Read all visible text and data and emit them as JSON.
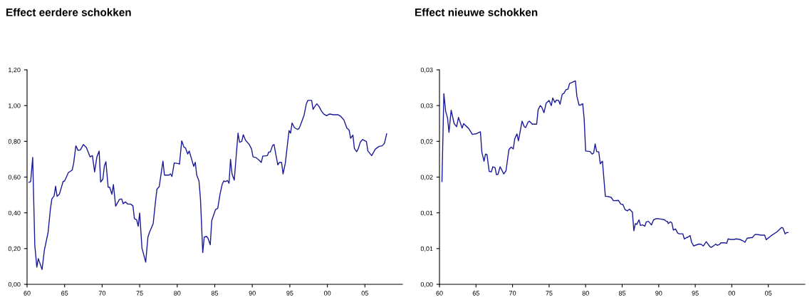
{
  "chart_data": [
    {
      "type": "line",
      "title": "Effect eerdere schokken",
      "xlim": [
        1960,
        2010
      ],
      "ylim": [
        0,
        1.2
      ],
      "xticks": [
        {
          "value": 1960,
          "label": "60"
        },
        {
          "value": 1965,
          "label": "65"
        },
        {
          "value": 1970,
          "label": "70"
        },
        {
          "value": 1975,
          "label": "75"
        },
        {
          "value": 1980,
          "label": "80"
        },
        {
          "value": 1985,
          "label": "85"
        },
        {
          "value": 1990,
          "label": "90"
        },
        {
          "value": 1995,
          "label": "95"
        },
        {
          "value": 2000,
          "label": "00"
        },
        {
          "value": 2005,
          "label": "05"
        }
      ],
      "yticks": [
        {
          "value": 0,
          "label": "0,00"
        },
        {
          "value": 0.2,
          "label": "0,20"
        },
        {
          "value": 0.4,
          "label": "0,40"
        },
        {
          "value": 0.6,
          "label": "0,60"
        },
        {
          "value": 0.8,
          "label": "0,80"
        },
        {
          "value": 1.0,
          "label": "1,00"
        },
        {
          "value": 1.2,
          "label": "1,20"
        }
      ],
      "grid": false,
      "legend": false,
      "series": [
        {
          "color": "#1a1a99",
          "x": [
            1960.24,
            1960.48,
            1960.75,
            1961.03,
            1961.3,
            1961.5,
            1962.0,
            1962.3,
            1962.8,
            1963.1,
            1963.3,
            1963.6,
            1963.8,
            1964.0,
            1964.3,
            1964.8,
            1965.0,
            1965.5,
            1966.0,
            1966.2,
            1966.5,
            1966.8,
            1967.1,
            1967.5,
            1967.9,
            1968.4,
            1968.7,
            1969.0,
            1969.3,
            1969.6,
            1969.8,
            1970.1,
            1970.3,
            1970.5,
            1970.8,
            1971.0,
            1971.3,
            1971.5,
            1971.8,
            1972.3,
            1972.6,
            1972.8,
            1973.1,
            1973.4,
            1973.8,
            1974.1,
            1974.3,
            1974.6,
            1974.8,
            1975.0,
            1975.3,
            1975.8,
            1976.1,
            1976.3,
            1976.8,
            1977.1,
            1977.3,
            1977.6,
            1978.1,
            1978.3,
            1978.9,
            1979.1,
            1979.3,
            1979.6,
            1980.2,
            1980.3,
            1980.6,
            1980.9,
            1981.1,
            1981.4,
            1981.6,
            1982.2,
            1982.4,
            1982.6,
            1982.9,
            1983.1,
            1983.4,
            1983.6,
            1983.9,
            1984.1,
            1984.4,
            1984.6,
            1985.1,
            1985.4,
            1985.7,
            1986.0,
            1986.2,
            1986.4,
            1986.7,
            1986.9,
            1987.1,
            1987.3,
            1987.6,
            1988.1,
            1988.3,
            1988.6,
            1988.8,
            1989.1,
            1989.6,
            1989.9,
            1990.1,
            1990.5,
            1990.9,
            1991.2,
            1991.4,
            1991.7,
            1992.0,
            1992.2,
            1992.4,
            1992.7,
            1992.9,
            1993.1,
            1993.4,
            1993.6,
            1993.9,
            1994.1,
            1994.4,
            1994.7,
            1994.9,
            1995.1,
            1995.3,
            1995.6,
            1996.0,
            1996.2,
            1996.4,
            1996.9,
            1997.2,
            1997.4,
            1997.9,
            1998.1,
            1998.4,
            1998.6,
            1998.9,
            1999.2,
            1999.5,
            1999.9,
            2000.3,
            2000.8,
            2001.4,
            2001.8,
            2002.2,
            2002.6,
            2002.9,
            2003.1,
            2003.4,
            2003.6,
            2003.9,
            2004.1,
            2004.4,
            2004.7,
            2005.2,
            2005.4,
            2005.9,
            2006.4,
            2006.9,
            2007.3,
            2007.6,
            2007.9
          ],
          "values": [
            0.571,
            0.575,
            0.71,
            0.218,
            0.096,
            0.144,
            0.083,
            0.19,
            0.29,
            0.418,
            0.478,
            0.494,
            0.549,
            0.492,
            0.504,
            0.575,
            0.578,
            0.625,
            0.639,
            0.675,
            0.775,
            0.749,
            0.752,
            0.782,
            0.765,
            0.713,
            0.72,
            0.629,
            0.713,
            0.746,
            0.572,
            0.589,
            0.663,
            0.686,
            0.543,
            0.543,
            0.504,
            0.558,
            0.437,
            0.475,
            0.478,
            0.451,
            0.461,
            0.449,
            0.449,
            0.439,
            0.367,
            0.361,
            0.325,
            0.399,
            0.204,
            0.124,
            0.264,
            0.29,
            0.34,
            0.461,
            0.532,
            0.546,
            0.689,
            0.611,
            0.611,
            0.618,
            0.603,
            0.679,
            0.675,
            0.672,
            0.803,
            0.767,
            0.763,
            0.729,
            0.746,
            0.66,
            0.683,
            0.611,
            0.578,
            0.475,
            0.178,
            0.264,
            0.268,
            0.258,
            0.221,
            0.357,
            0.418,
            0.425,
            0.504,
            0.561,
            0.578,
            0.575,
            0.581,
            0.565,
            0.699,
            0.618,
            0.583,
            0.846,
            0.795,
            0.8,
            0.837,
            0.806,
            0.782,
            0.757,
            0.713,
            0.709,
            0.695,
            0.682,
            0.718,
            0.718,
            0.72,
            0.74,
            0.74,
            0.777,
            0.782,
            0.735,
            0.668,
            0.682,
            0.682,
            0.618,
            0.678,
            0.789,
            0.86,
            0.846,
            0.903,
            0.877,
            0.867,
            0.87,
            0.889,
            0.946,
            1.01,
            1.029,
            1.029,
            0.979,
            0.999,
            1.01,
            0.994,
            0.97,
            0.953,
            0.943,
            0.953,
            0.949,
            0.949,
            0.939,
            0.92,
            0.874,
            0.863,
            0.817,
            0.835,
            0.76,
            0.742,
            0.757,
            0.796,
            0.81,
            0.799,
            0.746,
            0.72,
            0.757,
            0.772,
            0.775,
            0.789,
            0.842
          ]
        }
      ]
    },
    {
      "type": "line",
      "title": "Effect nieuwe schokken",
      "xlim": [
        1960,
        2010
      ],
      "ylim": [
        0,
        0.03
      ],
      "xticks": [
        {
          "value": 1960,
          "label": "60"
        },
        {
          "value": 1965,
          "label": "65"
        },
        {
          "value": 1970,
          "label": "70"
        },
        {
          "value": 1975,
          "label": "75"
        },
        {
          "value": 1980,
          "label": "80"
        },
        {
          "value": 1985,
          "label": "85"
        },
        {
          "value": 1990,
          "label": "90"
        },
        {
          "value": 1995,
          "label": "95"
        },
        {
          "value": 2000,
          "label": "00"
        },
        {
          "value": 2005,
          "label": "05"
        }
      ],
      "yticks": [
        {
          "value": 0,
          "label": "0,00"
        },
        {
          "value": 0.005,
          "label": "0,01"
        },
        {
          "value": 0.01,
          "label": "0,01"
        },
        {
          "value": 0.015,
          "label": "0,02"
        },
        {
          "value": 0.02,
          "label": "0,02"
        },
        {
          "value": 0.025,
          "label": "0,03"
        },
        {
          "value": 0.03,
          "label": "0,03"
        }
      ],
      "grid": false,
      "legend": false,
      "series": [
        {
          "color": "#1a1a99",
          "x": [
            1960.34,
            1960.6,
            1960.85,
            1961.1,
            1961.3,
            1961.6,
            1962.0,
            1962.35,
            1962.6,
            1963.1,
            1963.3,
            1964.0,
            1964.5,
            1965.1,
            1965.6,
            1965.8,
            1966.1,
            1966.3,
            1966.5,
            1966.8,
            1967.1,
            1967.3,
            1967.6,
            1967.8,
            1968.0,
            1968.3,
            1968.8,
            1969.1,
            1969.5,
            1969.8,
            1970.1,
            1970.3,
            1970.6,
            1970.8,
            1971.1,
            1971.3,
            1971.6,
            1971.8,
            1972.1,
            1972.3,
            1972.7,
            1973.3,
            1973.5,
            1973.8,
            1974.0,
            1974.3,
            1974.6,
            1975.0,
            1975.3,
            1975.5,
            1975.8,
            1976.0,
            1976.3,
            1976.5,
            1976.8,
            1977.0,
            1977.3,
            1977.6,
            1977.8,
            1978.1,
            1978.6,
            1978.8,
            1979.1,
            1979.3,
            1979.6,
            1979.8,
            1980.0,
            1980.6,
            1980.9,
            1981.1,
            1981.3,
            1981.5,
            1981.8,
            1982.0,
            1982.3,
            1982.7,
            1983.0,
            1983.5,
            1983.8,
            1984.5,
            1984.8,
            1985.1,
            1985.4,
            1985.7,
            1986.0,
            1986.4,
            1986.6,
            1986.8,
            1987.0,
            1987.3,
            1987.5,
            1987.8,
            1988.1,
            1988.3,
            1988.6,
            1989.0,
            1989.3,
            1989.7,
            1990.3,
            1990.8,
            1991.0,
            1991.2,
            1991.3,
            1991.6,
            1991.8,
            1992.0,
            1992.3,
            1992.6,
            1992.8,
            1993.3,
            1993.5,
            1993.8,
            1994.0,
            1994.3,
            1994.5,
            1994.8,
            1995.0,
            1995.5,
            1995.8,
            1996.1,
            1996.5,
            1997.0,
            1997.2,
            1997.6,
            1997.8,
            1998.0,
            1998.3,
            1998.5,
            1999.0,
            1999.3,
            1999.5,
            1999.8,
            2000.3,
            2000.6,
            2001.1,
            2001.5,
            2001.8,
            2002.1,
            2002.6,
            2002.8,
            2003.2,
            2003.6,
            2004.0,
            2004.5,
            2004.7,
            2005.4,
            2006.2,
            2006.8,
            2007.0,
            2007.3,
            2007.5,
            2007.7
          ],
          "values": [
            0.01437,
            0.02667,
            0.02418,
            0.02329,
            0.02125,
            0.02436,
            0.0225,
            0.02204,
            0.02336,
            0.02186,
            0.02247,
            0.02179,
            0.02097,
            0.02108,
            0.02133,
            0.01847,
            0.01722,
            0.01822,
            0.01815,
            0.0158,
            0.01573,
            0.01644,
            0.01633,
            0.01533,
            0.01537,
            0.01644,
            0.01544,
            0.01587,
            0.01883,
            0.01918,
            0.01894,
            0.02036,
            0.02104,
            0.02008,
            0.02168,
            0.02282,
            0.02204,
            0.02193,
            0.02264,
            0.02282,
            0.0224,
            0.0224,
            0.02443,
            0.025,
            0.02478,
            0.024,
            0.02535,
            0.02571,
            0.025,
            0.02607,
            0.02543,
            0.02578,
            0.02571,
            0.02518,
            0.0266,
            0.02667,
            0.02721,
            0.02732,
            0.0281,
            0.02821,
            0.02846,
            0.02632,
            0.02507,
            0.02507,
            0.02525,
            0.02311,
            0.01865,
            0.01858,
            0.01822,
            0.01837,
            0.01965,
            0.01858,
            0.01851,
            0.01687,
            0.01722,
            0.0123,
            0.0123,
            0.01216,
            0.0117,
            0.01173,
            0.01123,
            0.01116,
            0.01045,
            0.01027,
            0.01052,
            0.01009,
            0.00749,
            0.00849,
            0.00838,
            0.00902,
            0.00824,
            0.00831,
            0.00813,
            0.00874,
            0.00881,
            0.00831,
            0.00902,
            0.0092,
            0.00913,
            0.00902,
            0.00884,
            0.00877,
            0.00849,
            0.00874,
            0.00859,
            0.0076,
            0.00774,
            0.00717,
            0.00706,
            0.00706,
            0.00635,
            0.00653,
            0.0066,
            0.00681,
            0.00588,
            0.00535,
            0.00546,
            0.00563,
            0.0056,
            0.00535,
            0.00596,
            0.00528,
            0.00517,
            0.00546,
            0.00563,
            0.00546,
            0.00556,
            0.00581,
            0.00581,
            0.00574,
            0.00635,
            0.00628,
            0.00628,
            0.00635,
            0.00628,
            0.0061,
            0.00588,
            0.00645,
            0.00653,
            0.00653,
            0.00699,
            0.00695,
            0.00688,
            0.00688,
            0.00624,
            0.00681,
            0.00735,
            0.00795,
            0.00788,
            0.00706,
            0.00724,
            0.00724
          ]
        }
      ]
    }
  ]
}
